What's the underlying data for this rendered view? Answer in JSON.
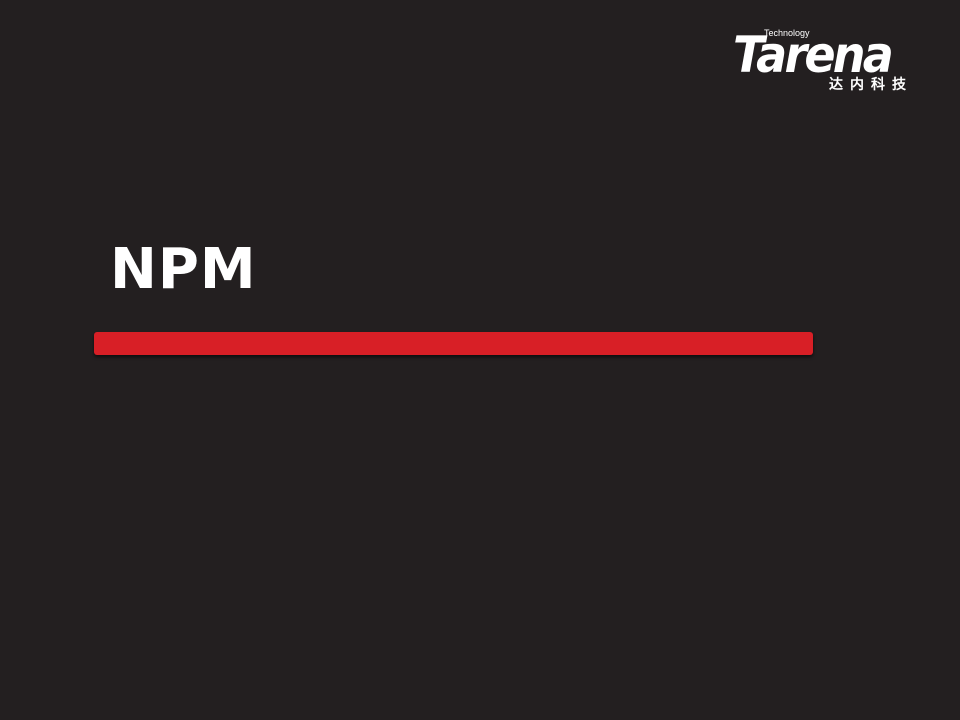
{
  "logo": {
    "tagline": "Technology",
    "wordmark": "Tarena",
    "chinese": "达内科技"
  },
  "slide": {
    "title": "NPM"
  },
  "colors": {
    "background": "#231f20",
    "accent": "#d81f26",
    "text": "#ffffff"
  }
}
